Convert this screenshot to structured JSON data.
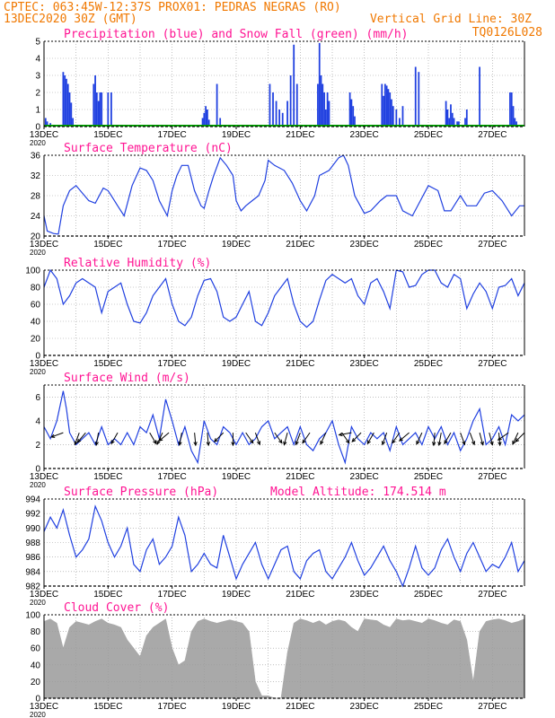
{
  "header": {
    "line1_left": "CPTEC:  063:45W-12:37S  PROX01: PEDRAS NEGRAS (RO)",
    "line2_left": "13DEC2020 30Z (GMT)",
    "line2_right": "Vertical Grid Line: 30Z",
    "line3_right": "TQ0126L028"
  },
  "colors": {
    "header": "#f07800",
    "title": "#ff1493",
    "line": "#2040e0",
    "snow": "#00a000",
    "cloud": "#a9a9a9",
    "grid": "#9a9a9a"
  },
  "x_axis": {
    "labels": [
      "13DEC",
      "15DEC",
      "17DEC",
      "19DEC",
      "21DEC",
      "23DEC",
      "25DEC",
      "27DEC"
    ],
    "year_label": "2020",
    "days_span": 15,
    "grid_every_days": 1
  },
  "chart_data": [
    {
      "type": "bar",
      "title": "Precipitation (blue) and Snow Fall (green) (mm/h)",
      "ylim": [
        0,
        5
      ],
      "yticks": [
        0,
        1,
        2,
        3,
        4,
        5
      ],
      "series": [
        {
          "name": "Precipitation",
          "x_day": [
            0.05,
            0.1,
            0.2,
            0.6,
            0.65,
            0.7,
            0.75,
            0.8,
            0.85,
            0.9,
            1.55,
            1.6,
            1.65,
            1.7,
            1.75,
            1.8,
            2.0,
            2.1,
            4.95,
            5.0,
            5.05,
            5.1,
            5.15,
            5.4,
            5.5,
            7.05,
            7.15,
            7.25,
            7.35,
            7.45,
            7.6,
            7.7,
            7.8,
            7.9,
            8.55,
            8.6,
            8.65,
            8.7,
            8.75,
            8.8,
            8.85,
            8.9,
            9.55,
            9.6,
            9.65,
            9.7,
            10.55,
            10.6,
            10.65,
            10.7,
            10.75,
            10.8,
            10.85,
            10.9,
            11.0,
            11.1,
            11.2,
            11.6,
            11.7,
            12.55,
            12.6,
            12.65,
            12.7,
            12.75,
            12.8,
            12.9,
            12.95,
            13.15,
            13.2,
            13.6,
            14.55,
            14.6,
            14.65,
            14.7,
            14.75
          ],
          "values": [
            0.5,
            0.3,
            0.2,
            3.2,
            3.0,
            2.8,
            2.5,
            2.0,
            1.4,
            0.5,
            2.5,
            3.0,
            2.0,
            1.5,
            2.0,
            2.0,
            2.0,
            2.0,
            0.5,
            0.8,
            1.2,
            1.0,
            0.4,
            2.5,
            0.5,
            2.5,
            2.0,
            1.5,
            1.0,
            0.8,
            1.5,
            3.0,
            4.8,
            2.5,
            2.5,
            4.9,
            3.0,
            2.5,
            2.0,
            1.0,
            2.0,
            1.5,
            2.0,
            1.6,
            1.2,
            0.6,
            2.5,
            1.8,
            2.5,
            2.4,
            2.2,
            2.0,
            1.6,
            1.2,
            1.0,
            0.5,
            1.2,
            3.5,
            3.2,
            1.5,
            1.0,
            0.5,
            1.3,
            0.8,
            0.5,
            0.3,
            0.3,
            0.5,
            1.0,
            3.5,
            2.0,
            2.0,
            1.2,
            0.5,
            0.3
          ]
        },
        {
          "name": "Snow Fall",
          "x_day": [
            0,
            15
          ],
          "values": [
            0,
            0
          ]
        }
      ]
    },
    {
      "type": "line",
      "title": "Surface Temperature (nC)",
      "ylim": [
        20,
        36
      ],
      "yticks": [
        20,
        24,
        28,
        32,
        36
      ],
      "x_day": [
        0,
        0.1,
        0.3,
        0.45,
        0.6,
        0.8,
        1.0,
        1.2,
        1.4,
        1.6,
        1.85,
        2.0,
        2.15,
        2.3,
        2.5,
        2.75,
        3.0,
        3.2,
        3.4,
        3.6,
        3.85,
        4.0,
        4.15,
        4.3,
        4.5,
        4.7,
        4.9,
        5.0,
        5.15,
        5.3,
        5.5,
        5.7,
        5.9,
        6.0,
        6.15,
        6.3,
        6.5,
        6.7,
        6.9,
        7.0,
        7.2,
        7.5,
        7.75,
        8.0,
        8.2,
        8.45,
        8.6,
        8.9,
        9.2,
        9.35,
        9.5,
        9.7,
        10.0,
        10.2,
        10.5,
        10.7,
        11.0,
        11.2,
        11.5,
        11.75,
        12.0,
        12.3,
        12.5,
        12.7,
        13.0,
        13.2,
        13.5,
        13.75,
        14.0,
        14.3,
        14.6,
        14.85,
        15.0
      ],
      "values": [
        24,
        21,
        20.5,
        20.4,
        26,
        29,
        30,
        28.5,
        27,
        26.5,
        29.5,
        29,
        27.5,
        26,
        24,
        30,
        33.5,
        33,
        31,
        27,
        24,
        29,
        32,
        34,
        34,
        29,
        26,
        25.5,
        29,
        32,
        35.5,
        34,
        32,
        27,
        25,
        26,
        27,
        28,
        31,
        35,
        34,
        33,
        30.5,
        27,
        25,
        28,
        32,
        33,
        35.5,
        36,
        34,
        28,
        24.5,
        25,
        27,
        28,
        28,
        25,
        24,
        27,
        30,
        29,
        25,
        25,
        28,
        26,
        26,
        28.5,
        29,
        27,
        24,
        26,
        26
      ],
      "xlabel": "",
      "ylabel": ""
    },
    {
      "type": "line",
      "title": "Relative Humidity (%)",
      "ylim": [
        0,
        100
      ],
      "yticks": [
        0,
        20,
        40,
        60,
        80,
        100
      ],
      "x_day": [
        0,
        0.2,
        0.4,
        0.6,
        0.8,
        1.0,
        1.2,
        1.4,
        1.6,
        1.8,
        2.0,
        2.2,
        2.4,
        2.6,
        2.8,
        3.0,
        3.2,
        3.4,
        3.6,
        3.8,
        4.0,
        4.2,
        4.4,
        4.6,
        4.8,
        5.0,
        5.2,
        5.4,
        5.6,
        5.8,
        6.0,
        6.2,
        6.4,
        6.6,
        6.8,
        7.0,
        7.2,
        7.4,
        7.6,
        7.8,
        8.0,
        8.2,
        8.4,
        8.6,
        8.8,
        9.0,
        9.2,
        9.4,
        9.6,
        9.8,
        10.0,
        10.2,
        10.4,
        10.6,
        10.8,
        11.0,
        11.2,
        11.4,
        11.6,
        11.8,
        12.0,
        12.2,
        12.4,
        12.6,
        12.8,
        13.0,
        13.2,
        13.4,
        13.6,
        13.8,
        14.0,
        14.2,
        14.4,
        14.6,
        14.8,
        15.0
      ],
      "values": [
        80,
        100,
        90,
        60,
        70,
        85,
        90,
        85,
        80,
        50,
        75,
        80,
        85,
        60,
        40,
        38,
        50,
        70,
        80,
        90,
        60,
        40,
        35,
        45,
        70,
        88,
        90,
        75,
        45,
        40,
        45,
        60,
        75,
        40,
        35,
        50,
        70,
        80,
        90,
        60,
        40,
        33,
        40,
        65,
        88,
        95,
        90,
        85,
        90,
        70,
        60,
        85,
        90,
        75,
        55,
        100,
        98,
        80,
        82,
        95,
        100,
        100,
        85,
        80,
        95,
        90,
        55,
        72,
        85,
        75,
        55,
        80,
        82,
        90,
        70,
        85
      ],
      "xlabel": "",
      "ylabel": ""
    },
    {
      "type": "line",
      "title": "Surface Wind (m/s)",
      "ylim": [
        0,
        7
      ],
      "yticks": [
        0,
        2,
        4,
        6
      ],
      "x_day": [
        0,
        0.2,
        0.4,
        0.6,
        0.7,
        0.8,
        1.0,
        1.2,
        1.4,
        1.6,
        1.8,
        2.0,
        2.2,
        2.4,
        2.6,
        2.8,
        3.0,
        3.2,
        3.4,
        3.6,
        3.8,
        4.0,
        4.2,
        4.4,
        4.6,
        4.8,
        5.0,
        5.2,
        5.4,
        5.6,
        5.8,
        6.0,
        6.2,
        6.4,
        6.6,
        6.8,
        7.0,
        7.2,
        7.4,
        7.6,
        7.8,
        8.0,
        8.2,
        8.4,
        8.6,
        8.8,
        9.0,
        9.2,
        9.4,
        9.6,
        9.8,
        10.0,
        10.2,
        10.4,
        10.6,
        10.8,
        11.0,
        11.2,
        11.4,
        11.6,
        11.8,
        12.0,
        12.2,
        12.4,
        12.6,
        12.8,
        13.0,
        13.2,
        13.4,
        13.6,
        13.8,
        14.0,
        14.2,
        14.4,
        14.6,
        14.8,
        15.0
      ],
      "values": [
        3.5,
        2.5,
        4.0,
        6.5,
        5.0,
        3.0,
        2.0,
        2.5,
        3.0,
        2.0,
        3.5,
        2.0,
        2.5,
        2.0,
        3.0,
        2.0,
        3.5,
        3.0,
        4.5,
        2.5,
        5.8,
        4.0,
        2.0,
        3.5,
        1.5,
        0.5,
        4.0,
        2.5,
        2.0,
        3.5,
        3.0,
        2.0,
        3.0,
        2.0,
        2.5,
        3.5,
        4.0,
        2.5,
        3.0,
        3.5,
        2.0,
        3.5,
        2.0,
        1.5,
        2.5,
        3.0,
        4.0,
        2.0,
        0.5,
        3.5,
        2.5,
        2.0,
        3.0,
        2.5,
        3.0,
        1.5,
        3.5,
        2.0,
        2.5,
        3.0,
        2.0,
        3.5,
        2.5,
        3.5,
        2.0,
        3.0,
        1.5,
        2.5,
        4.0,
        5.0,
        2.0,
        2.5,
        3.5,
        2.0,
        4.5,
        4.0,
        4.5
      ],
      "arrows_x_day": [
        0.6,
        1.1,
        1.3,
        1.7,
        2.3,
        3.3,
        3.7,
        3.9,
        4.3,
        4.7,
        5.1,
        5.6,
        5.9,
        6.3,
        6.6,
        7.2,
        7.6,
        8.0,
        8.3,
        8.8,
        9.3,
        9.6,
        9.9,
        10.3,
        10.7,
        11.1,
        11.4,
        11.8,
        12.2,
        12.4,
        12.7,
        13.0,
        13.3,
        13.6,
        13.9,
        14.2,
        14.5,
        14.8,
        15.0
      ],
      "arrows_deg": [
        200,
        250,
        230,
        260,
        240,
        300,
        245,
        220,
        260,
        275,
        275,
        225,
        270,
        305,
        290,
        305,
        255,
        250,
        235,
        245,
        305,
        190,
        225,
        240,
        250,
        235,
        220,
        245,
        265,
        260,
        240,
        290,
        290,
        285,
        285,
        275,
        215,
        245,
        225
      ],
      "xlabel": "",
      "ylabel": ""
    },
    {
      "type": "line",
      "title": "Surface Pressure (hPa)",
      "annotation": "Model Altitude: 174.514  m",
      "ylim": [
        982,
        994
      ],
      "yticks": [
        982,
        984,
        986,
        988,
        990,
        992,
        994
      ],
      "x_day": [
        0,
        0.2,
        0.4,
        0.6,
        0.8,
        1.0,
        1.2,
        1.4,
        1.6,
        1.8,
        2.0,
        2.2,
        2.4,
        2.6,
        2.8,
        3.0,
        3.2,
        3.4,
        3.6,
        3.8,
        4.0,
        4.2,
        4.4,
        4.6,
        4.8,
        5.0,
        5.2,
        5.4,
        5.6,
        5.8,
        6.0,
        6.2,
        6.4,
        6.6,
        6.8,
        7.0,
        7.2,
        7.4,
        7.6,
        7.8,
        8.0,
        8.2,
        8.4,
        8.6,
        8.8,
        9.0,
        9.2,
        9.4,
        9.6,
        9.8,
        10.0,
        10.2,
        10.4,
        10.6,
        10.8,
        11.0,
        11.2,
        11.4,
        11.6,
        11.8,
        12.0,
        12.2,
        12.4,
        12.6,
        12.8,
        13.0,
        13.2,
        13.4,
        13.6,
        13.8,
        14.0,
        14.2,
        14.4,
        14.6,
        14.8,
        15.0
      ],
      "values": [
        989.5,
        991.5,
        990,
        992.5,
        989,
        986,
        987,
        988.5,
        993,
        991,
        988,
        986,
        987.5,
        990,
        985,
        984,
        987,
        988.5,
        985,
        986,
        987.5,
        991.5,
        989,
        984,
        985,
        986.5,
        985,
        984.5,
        989,
        986,
        983,
        985,
        986.5,
        988,
        985,
        983,
        985,
        987,
        987.5,
        984,
        983,
        985.5,
        986.5,
        987,
        984,
        983,
        984.5,
        986,
        988,
        985.5,
        983.5,
        984.5,
        986,
        987.5,
        985.5,
        984,
        982,
        984.5,
        987.5,
        984.5,
        983.5,
        984.5,
        987,
        988.5,
        986,
        984,
        986.5,
        988,
        986,
        984,
        985,
        984.5,
        986,
        988,
        984,
        985.5
      ],
      "xlabel": "",
      "ylabel": ""
    },
    {
      "type": "area",
      "title": "Cloud Cover (%)",
      "ylim": [
        0,
        100
      ],
      "yticks": [
        0,
        20,
        40,
        60,
        80,
        100
      ],
      "x_day": [
        0,
        0.2,
        0.4,
        0.6,
        0.8,
        1.0,
        1.2,
        1.4,
        1.6,
        1.8,
        2.0,
        2.2,
        2.4,
        2.6,
        2.8,
        3.0,
        3.2,
        3.4,
        3.6,
        3.8,
        4.0,
        4.2,
        4.4,
        4.6,
        4.8,
        5.0,
        5.2,
        5.4,
        5.6,
        5.8,
        6.0,
        6.2,
        6.4,
        6.6,
        6.8,
        7.0,
        7.2,
        7.4,
        7.6,
        7.8,
        8.0,
        8.2,
        8.4,
        8.6,
        8.8,
        9.0,
        9.2,
        9.4,
        9.6,
        9.8,
        10.0,
        10.2,
        10.4,
        10.6,
        10.8,
        11.0,
        11.2,
        11.4,
        11.6,
        11.8,
        12.0,
        12.2,
        12.4,
        12.6,
        12.8,
        13.0,
        13.2,
        13.4,
        13.6,
        13.8,
        14.0,
        14.2,
        14.4,
        14.6,
        14.8,
        15.0
      ],
      "values": [
        92,
        95,
        90,
        60,
        85,
        92,
        90,
        88,
        92,
        95,
        90,
        88,
        85,
        70,
        60,
        50,
        75,
        85,
        90,
        95,
        60,
        40,
        45,
        80,
        92,
        95,
        92,
        90,
        92,
        94,
        92,
        90,
        80,
        20,
        3,
        3,
        0,
        0,
        55,
        90,
        95,
        93,
        90,
        93,
        88,
        92,
        94,
        92,
        85,
        80,
        95,
        94,
        93,
        88,
        85,
        95,
        93,
        94,
        92,
        90,
        95,
        93,
        90,
        88,
        94,
        92,
        70,
        20,
        80,
        92,
        94,
        95,
        93,
        90,
        92,
        95
      ],
      "xlabel": "",
      "ylabel": ""
    }
  ]
}
